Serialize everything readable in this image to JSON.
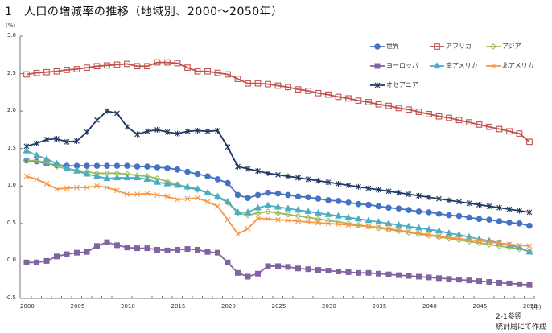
{
  "title": "1　人口の増減率の推移（地域別、2000～2050年）",
  "unit_label": "(%)",
  "x_unit_label": "(年)",
  "notes": [
    "2-1参照",
    "統計局にて作成"
  ],
  "chart_data": {
    "type": "line",
    "title": "人口の増減率の推移（地域別、2000～2050年）",
    "xlabel": "(年)",
    "ylabel": "(%)",
    "ylim": [
      -0.5,
      3.0
    ],
    "yticks": [
      "3.0",
      "2.5",
      "2.0",
      "1.5",
      "1.0",
      "0.5",
      "0.0",
      "-0.5"
    ],
    "ytick_values": [
      3.0,
      2.5,
      2.0,
      1.5,
      1.0,
      0.5,
      0.0,
      -0.5
    ],
    "xlim": [
      2000,
      2050
    ],
    "xticks": [
      "2000",
      "2005",
      "2010",
      "2015",
      "2020",
      "2025",
      "2030",
      "2035",
      "2040",
      "2045",
      "2050"
    ],
    "xtick_values": [
      2000,
      2005,
      2010,
      2015,
      2020,
      2025,
      2030,
      2035,
      2040,
      2045,
      2050
    ],
    "grid": false,
    "legend_position": "top-right",
    "x": [
      2000,
      2001,
      2002,
      2003,
      2004,
      2005,
      2006,
      2007,
      2008,
      2009,
      2010,
      2011,
      2012,
      2013,
      2014,
      2015,
      2016,
      2017,
      2018,
      2019,
      2020,
      2021,
      2022,
      2023,
      2024,
      2025,
      2026,
      2027,
      2028,
      2029,
      2030,
      2031,
      2032,
      2033,
      2034,
      2035,
      2036,
      2037,
      2038,
      2039,
      2040,
      2041,
      2042,
      2043,
      2044,
      2045,
      2046,
      2047,
      2048,
      2049,
      2050
    ],
    "series": [
      {
        "name": "世界",
        "color": "#4472C4",
        "marker": "circle",
        "values": [
          1.34,
          1.33,
          1.3,
          1.28,
          1.27,
          1.27,
          1.27,
          1.27,
          1.27,
          1.27,
          1.27,
          1.26,
          1.26,
          1.25,
          1.24,
          1.22,
          1.19,
          1.16,
          1.13,
          1.09,
          1.04,
          0.88,
          0.84,
          0.88,
          0.91,
          0.9,
          0.88,
          0.86,
          0.85,
          0.83,
          0.81,
          0.8,
          0.78,
          0.76,
          0.75,
          0.73,
          0.71,
          0.7,
          0.68,
          0.66,
          0.65,
          0.63,
          0.61,
          0.6,
          0.58,
          0.56,
          0.55,
          0.53,
          0.51,
          0.5,
          0.47
        ]
      },
      {
        "name": "アフリカ",
        "color": "#C0504D",
        "marker": "square-open",
        "values": [
          2.49,
          2.51,
          2.52,
          2.53,
          2.55,
          2.56,
          2.58,
          2.6,
          2.61,
          2.62,
          2.63,
          2.6,
          2.6,
          2.65,
          2.65,
          2.64,
          2.58,
          2.53,
          2.53,
          2.51,
          2.49,
          2.43,
          2.37,
          2.37,
          2.36,
          2.34,
          2.32,
          2.29,
          2.27,
          2.24,
          2.22,
          2.19,
          2.17,
          2.14,
          2.12,
          2.09,
          2.07,
          2.04,
          2.02,
          1.99,
          1.96,
          1.93,
          1.91,
          1.88,
          1.85,
          1.82,
          1.79,
          1.76,
          1.73,
          1.7,
          1.59
        ]
      },
      {
        "name": "アジア",
        "color": "#9BBB59",
        "marker": "diamond-open",
        "values": [
          1.34,
          1.34,
          1.31,
          1.26,
          1.23,
          1.21,
          1.19,
          1.17,
          1.17,
          1.17,
          1.16,
          1.14,
          1.13,
          1.1,
          1.06,
          1.02,
          0.98,
          0.95,
          0.91,
          0.85,
          0.78,
          0.64,
          0.61,
          0.64,
          0.66,
          0.64,
          0.62,
          0.6,
          0.58,
          0.56,
          0.54,
          0.52,
          0.5,
          0.48,
          0.46,
          0.44,
          0.42,
          0.4,
          0.38,
          0.36,
          0.34,
          0.32,
          0.3,
          0.28,
          0.26,
          0.24,
          0.22,
          0.2,
          0.18,
          0.16,
          0.13
        ]
      },
      {
        "name": "ヨーロッパ",
        "color": "#8064A2",
        "marker": "square",
        "values": [
          -0.02,
          -0.02,
          0.0,
          0.06,
          0.09,
          0.11,
          0.12,
          0.2,
          0.25,
          0.21,
          0.18,
          0.17,
          0.17,
          0.15,
          0.14,
          0.15,
          0.16,
          0.15,
          0.12,
          0.11,
          -0.02,
          -0.16,
          -0.21,
          -0.17,
          -0.07,
          -0.07,
          -0.08,
          -0.1,
          -0.11,
          -0.12,
          -0.13,
          -0.14,
          -0.15,
          -0.16,
          -0.16,
          -0.17,
          -0.18,
          -0.19,
          -0.2,
          -0.21,
          -0.22,
          -0.23,
          -0.24,
          -0.25,
          -0.26,
          -0.27,
          -0.28,
          -0.29,
          -0.3,
          -0.31,
          -0.32
        ]
      },
      {
        "name": "南アメリカ",
        "color": "#4BACC6",
        "marker": "triangle",
        "values": [
          1.47,
          1.41,
          1.36,
          1.3,
          1.24,
          1.2,
          1.16,
          1.13,
          1.1,
          1.11,
          1.11,
          1.11,
          1.09,
          1.05,
          1.03,
          1.01,
          0.99,
          0.96,
          0.91,
          0.86,
          0.79,
          0.65,
          0.65,
          0.71,
          0.74,
          0.72,
          0.7,
          0.68,
          0.66,
          0.64,
          0.62,
          0.6,
          0.58,
          0.56,
          0.54,
          0.52,
          0.5,
          0.48,
          0.46,
          0.44,
          0.42,
          0.4,
          0.37,
          0.35,
          0.32,
          0.29,
          0.27,
          0.24,
          0.21,
          0.18,
          0.12
        ]
      },
      {
        "name": "北アメリカ",
        "color": "#F79646",
        "marker": "x",
        "values": [
          1.13,
          1.09,
          1.03,
          0.96,
          0.97,
          0.98,
          0.98,
          1.0,
          0.98,
          0.94,
          0.89,
          0.89,
          0.9,
          0.88,
          0.86,
          0.82,
          0.83,
          0.84,
          0.79,
          0.73,
          0.55,
          0.36,
          0.43,
          0.57,
          0.56,
          0.55,
          0.54,
          0.53,
          0.52,
          0.51,
          0.5,
          0.49,
          0.48,
          0.47,
          0.46,
          0.45,
          0.43,
          0.41,
          0.39,
          0.37,
          0.35,
          0.33,
          0.31,
          0.3,
          0.28,
          0.27,
          0.25,
          0.24,
          0.22,
          0.21,
          0.2
        ]
      },
      {
        "name": "オセアニア",
        "color": "#1F3864",
        "marker": "star",
        "values": [
          1.53,
          1.57,
          1.62,
          1.63,
          1.59,
          1.6,
          1.72,
          1.88,
          2.0,
          1.97,
          1.79,
          1.69,
          1.73,
          1.75,
          1.72,
          1.7,
          1.73,
          1.74,
          1.73,
          1.74,
          1.52,
          1.26,
          1.23,
          1.2,
          1.17,
          1.15,
          1.13,
          1.11,
          1.09,
          1.07,
          1.05,
          1.03,
          1.01,
          0.99,
          0.97,
          0.95,
          0.93,
          0.91,
          0.89,
          0.87,
          0.85,
          0.83,
          0.81,
          0.79,
          0.77,
          0.75,
          0.73,
          0.71,
          0.69,
          0.67,
          0.65
        ]
      }
    ]
  }
}
